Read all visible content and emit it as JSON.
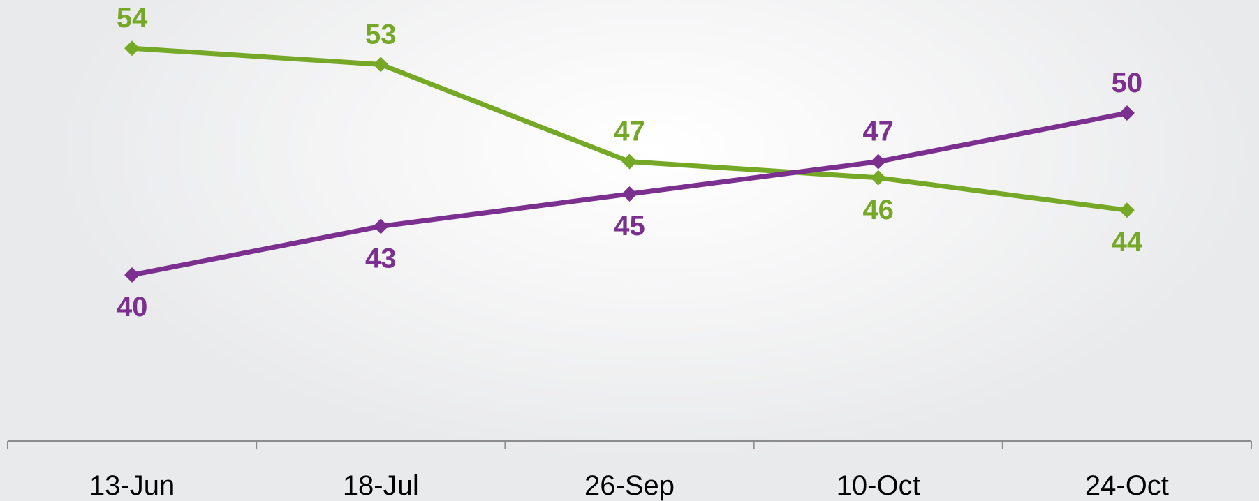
{
  "chart_data": {
    "type": "line",
    "title": "",
    "xlabel": "",
    "ylabel": "",
    "categories": [
      "13-Jun",
      "18-Jul",
      "26-Sep",
      "10-Oct",
      "24-Oct"
    ],
    "series": [
      {
        "values": [
          54,
          53,
          47,
          46,
          44
        ],
        "color": "#76a828"
      },
      {
        "values": [
          40,
          43,
          45,
          47,
          50
        ],
        "color": "#7b2f8e"
      }
    ],
    "ylim": [
      28,
      57
    ],
    "grid": false,
    "legend": "none",
    "marker": "diamond",
    "axis_color": "#8c8c8c"
  }
}
